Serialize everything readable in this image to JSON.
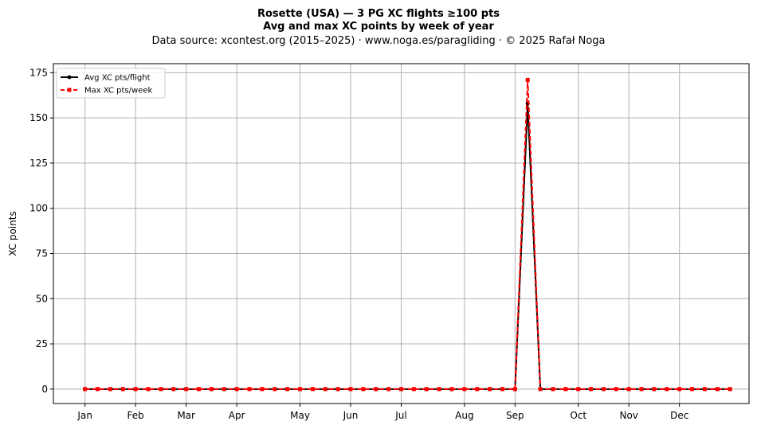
{
  "chart_data": {
    "type": "line",
    "title": "Rosette (USA)  —  3 PG XC flights ≥100 pts",
    "subtitle": "Avg and max XC points by week of year",
    "source_line": "Data source: xcontest.org (2015–2025)  ·  www.noga.es/paragliding  ·  © 2025 Rafał Noga",
    "xlabel": "",
    "ylabel": "XC points",
    "ylim": [
      -8,
      180
    ],
    "xlim": [
      -1.5,
      53.5
    ],
    "yticks": [
      0,
      25,
      50,
      75,
      100,
      125,
      150,
      175
    ],
    "xticks": [
      {
        "label": "Jan",
        "week": 1
      },
      {
        "label": "Feb",
        "week": 5
      },
      {
        "label": "Mar",
        "week": 9
      },
      {
        "label": "Apr",
        "week": 13
      },
      {
        "label": "May",
        "week": 18
      },
      {
        "label": "Jun",
        "week": 22
      },
      {
        "label": "Jul",
        "week": 26
      },
      {
        "label": "Aug",
        "week": 31
      },
      {
        "label": "Sep",
        "week": 35
      },
      {
        "label": "Oct",
        "week": 40
      },
      {
        "label": "Nov",
        "week": 44
      },
      {
        "label": "Dec",
        "week": 48
      }
    ],
    "grid": true,
    "legend_position": "top-left",
    "x": [
      1,
      2,
      3,
      4,
      5,
      6,
      7,
      8,
      9,
      10,
      11,
      12,
      13,
      14,
      15,
      16,
      17,
      18,
      19,
      20,
      21,
      22,
      23,
      24,
      25,
      26,
      27,
      28,
      29,
      30,
      31,
      32,
      33,
      34,
      35,
      36,
      37,
      38,
      39,
      40,
      41,
      42,
      43,
      44,
      45,
      46,
      47,
      48,
      49,
      50,
      51,
      52
    ],
    "series": [
      {
        "name": "Avg XC pts/flight",
        "color": "#000000",
        "style": "solid-circle",
        "values": [
          0,
          0,
          0,
          0,
          0,
          0,
          0,
          0,
          0,
          0,
          0,
          0,
          0,
          0,
          0,
          0,
          0,
          0,
          0,
          0,
          0,
          0,
          0,
          0,
          0,
          0,
          0,
          0,
          0,
          0,
          0,
          0,
          0,
          0,
          0,
          158,
          0,
          0,
          0,
          0,
          0,
          0,
          0,
          0,
          0,
          0,
          0,
          0,
          0,
          0,
          0,
          0
        ]
      },
      {
        "name": "Max XC pts/week",
        "color": "#ff0000",
        "style": "dashed-square",
        "values": [
          0,
          0,
          0,
          0,
          0,
          0,
          0,
          0,
          0,
          0,
          0,
          0,
          0,
          0,
          0,
          0,
          0,
          0,
          0,
          0,
          0,
          0,
          0,
          0,
          0,
          0,
          0,
          0,
          0,
          0,
          0,
          0,
          0,
          0,
          0,
          171,
          0,
          0,
          0,
          0,
          0,
          0,
          0,
          0,
          0,
          0,
          0,
          0,
          0,
          0,
          0,
          0
        ]
      }
    ]
  }
}
